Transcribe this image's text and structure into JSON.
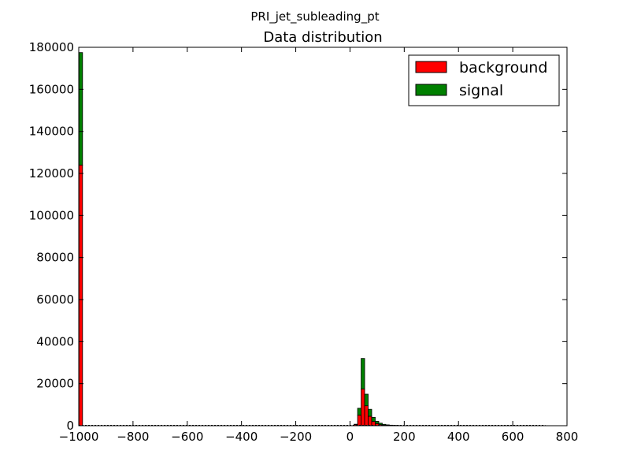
{
  "chart_data": {
    "type": "bar",
    "suptitle": "PRI_jet_subleading_pt",
    "title": "Data distribution",
    "xlabel": "",
    "ylabel": "",
    "xlim": [
      -1000,
      800
    ],
    "ylim": [
      0,
      180000
    ],
    "xticks": [
      "−1000",
      "−800",
      "−600",
      "−400",
      "−200",
      "0",
      "200",
      "400",
      "600",
      "800"
    ],
    "yticks": [
      "0",
      "20000",
      "40000",
      "60000",
      "80000",
      "100000",
      "120000",
      "140000",
      "160000",
      "180000"
    ],
    "stacked": true,
    "bin_width": 13.0,
    "legend_position": "top-right",
    "series": [
      {
        "name": "background",
        "color": "#ff0000",
        "bins": [
          {
            "x0": -999.0,
            "value": 124000
          },
          {
            "x0": 15.0,
            "value": 500
          },
          {
            "x0": 28.0,
            "value": 5000
          },
          {
            "x0": 41.0,
            "value": 17500
          },
          {
            "x0": 54.0,
            "value": 9500
          },
          {
            "x0": 67.0,
            "value": 4500
          },
          {
            "x0": 80.0,
            "value": 2000
          },
          {
            "x0": 93.0,
            "value": 1000
          },
          {
            "x0": 106.0,
            "value": 500
          },
          {
            "x0": 119.0,
            "value": 250
          },
          {
            "x0": 132.0,
            "value": 150
          },
          {
            "x0": 145.0,
            "value": 100
          },
          {
            "x0": 158.0,
            "value": 60
          },
          {
            "x0": 171.0,
            "value": 40
          }
        ]
      },
      {
        "name": "signal",
        "color": "#008000",
        "bins": [
          {
            "x0": -999.0,
            "value": 53500
          },
          {
            "x0": 15.0,
            "value": 200
          },
          {
            "x0": 28.0,
            "value": 3300
          },
          {
            "x0": 41.0,
            "value": 14500
          },
          {
            "x0": 54.0,
            "value": 5500
          },
          {
            "x0": 67.0,
            "value": 3300
          },
          {
            "x0": 80.0,
            "value": 2000
          },
          {
            "x0": 93.0,
            "value": 1100
          },
          {
            "x0": 106.0,
            "value": 700
          },
          {
            "x0": 119.0,
            "value": 400
          },
          {
            "x0": 132.0,
            "value": 250
          },
          {
            "x0": 145.0,
            "value": 150
          },
          {
            "x0": 158.0,
            "value": 100
          },
          {
            "x0": 171.0,
            "value": 60
          }
        ]
      }
    ]
  }
}
